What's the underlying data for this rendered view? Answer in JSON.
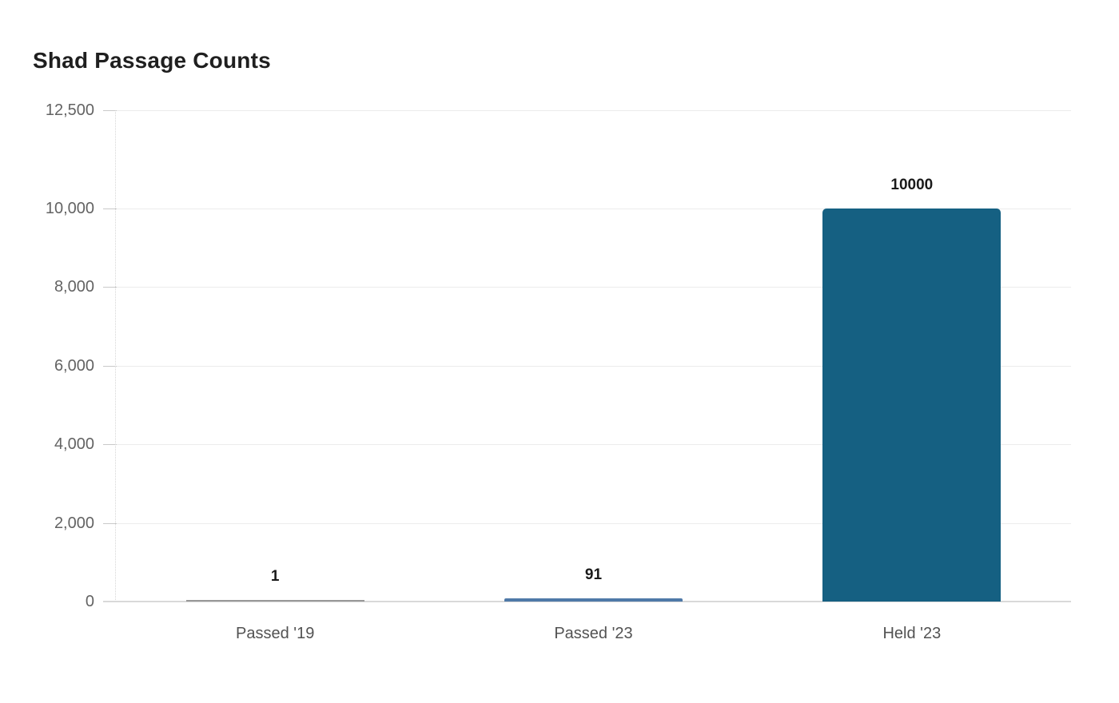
{
  "chart_data": {
    "type": "bar",
    "title": "Shad Passage Counts",
    "categories": [
      "Passed '19",
      "Passed '23",
      "Held '23"
    ],
    "values": [
      1,
      91,
      10000
    ],
    "value_labels": [
      "1",
      "91",
      "10000"
    ],
    "bar_colors": [
      "#989898",
      "#4f79a8",
      "#156082"
    ],
    "xlabel": "",
    "ylabel": "",
    "ylim": [
      0,
      12500
    ],
    "yticks": [
      0,
      2000,
      4000,
      6000,
      8000,
      10000,
      12500
    ],
    "ytick_labels": [
      "0",
      "2,000",
      "4,000",
      "6,000",
      "8,000",
      "10,000",
      "12,500"
    ],
    "grid": true,
    "legend": false,
    "background": "#ffffff",
    "colors": {
      "title": "#1f1f1f",
      "value_label": "#1a1a1a",
      "x_tick_label": "#525252",
      "y_tick_label": "#636363",
      "gridline": "#ececec",
      "tick_mark": "#c9c9c9",
      "axis_line": "#d9d9d9",
      "plot_edge_dotted": "#d6d6d6"
    }
  }
}
